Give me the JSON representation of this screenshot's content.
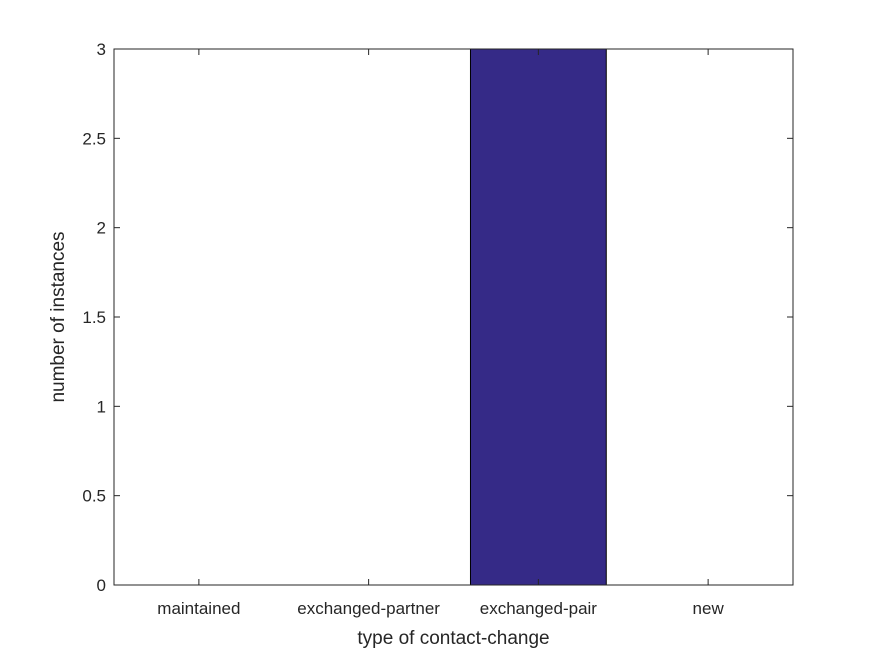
{
  "chart_data": {
    "type": "bar",
    "categories": [
      "maintained",
      "exchanged-partner",
      "exchanged-pair",
      "new"
    ],
    "values": [
      0,
      0,
      3,
      0
    ],
    "title": "",
    "xlabel": "type of contact-change",
    "ylabel": "number of instances",
    "ylim": [
      0,
      3
    ],
    "yticks": [
      "0",
      "0.5",
      "1",
      "1.5",
      "2",
      "2.5",
      "3"
    ],
    "grid": false,
    "bar_color": "#352a87"
  }
}
